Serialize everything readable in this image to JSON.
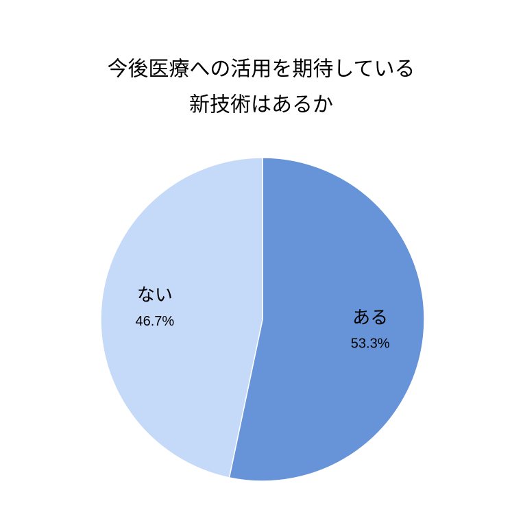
{
  "chart_data": {
    "type": "pie",
    "title": [
      "今後医療への活用を期待している",
      "新技術はあるか"
    ],
    "categories": [
      "ある",
      "ない"
    ],
    "values": [
      53.3,
      46.7
    ],
    "value_labels": [
      "53.3%",
      "46.7%"
    ],
    "colors": [
      "#6794d8",
      "#c5d9f8"
    ]
  }
}
